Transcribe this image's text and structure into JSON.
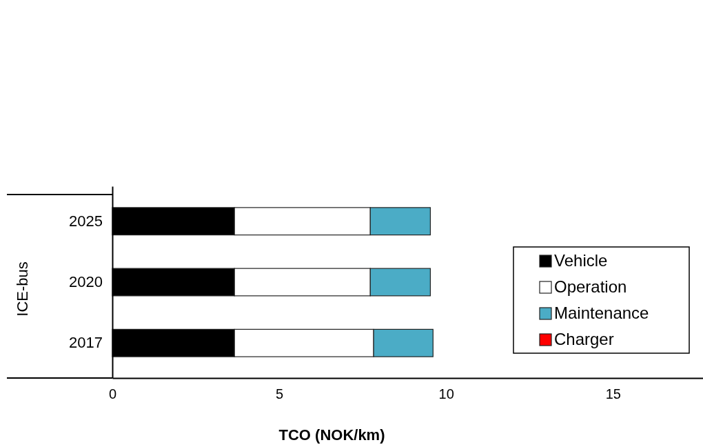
{
  "chart_data": {
    "type": "bar",
    "orientation": "horizontal",
    "stacked": true,
    "xlabel": "TCO (NOK/km)",
    "ylabel": "ICE-bus",
    "categories": [
      "2025",
      "2020",
      "2017"
    ],
    "series": [
      {
        "name": "Vehicle",
        "color": "#000000",
        "values": [
          3.66,
          3.66,
          3.66
        ]
      },
      {
        "name": "Operation",
        "color": "#ffffff",
        "values": [
          4.07,
          4.07,
          4.17
        ]
      },
      {
        "name": "Maintenance",
        "color": "#4bacc6",
        "values": [
          1.8,
          1.8,
          1.78
        ]
      },
      {
        "name": "Charger",
        "color": "#ff0000",
        "values": [
          0,
          0,
          0
        ]
      }
    ],
    "xlim": [
      0,
      17.7
    ],
    "xticks": [
      0,
      5,
      10,
      15
    ],
    "legend": "right",
    "grid": false
  }
}
